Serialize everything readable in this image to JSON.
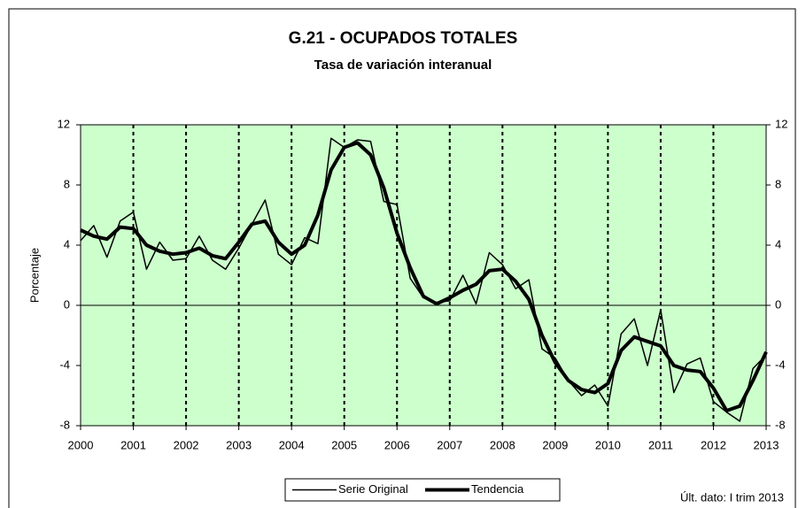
{
  "chart_data": {
    "type": "line",
    "title": "G.21 - OCUPADOS TOTALES",
    "subtitle": "Tasa de variación interanual",
    "ylabel": "Porcentaje",
    "note": "Últ. dato: I trim 2013",
    "background": "#ccffcc",
    "x": [
      2000,
      2000.25,
      2000.5,
      2000.75,
      2001,
      2001.25,
      2001.5,
      2001.75,
      2002,
      2002.25,
      2002.5,
      2002.75,
      2003,
      2003.25,
      2003.5,
      2003.75,
      2004,
      2004.25,
      2004.5,
      2004.75,
      2005,
      2005.25,
      2005.5,
      2005.75,
      2006,
      2006.25,
      2006.5,
      2006.75,
      2007,
      2007.25,
      2007.5,
      2007.75,
      2008,
      2008.25,
      2008.5,
      2008.75,
      2009,
      2009.25,
      2009.5,
      2009.75,
      2010,
      2010.25,
      2010.5,
      2010.75,
      2011,
      2011.25,
      2011.5,
      2011.75,
      2012,
      2012.25,
      2012.5,
      2012.75,
      2013
    ],
    "series": [
      {
        "name": "Serie Original",
        "color": "#000000",
        "width": 1.5,
        "values": [
          4.3,
          5.3,
          3.2,
          5.6,
          6.2,
          2.4,
          4.2,
          3.0,
          3.1,
          4.6,
          3.0,
          2.4,
          3.8,
          5.4,
          7.0,
          3.4,
          2.7,
          4.5,
          4.1,
          11.1,
          10.5,
          11.0,
          10.9,
          6.9,
          6.7,
          1.8,
          0.5,
          0.2,
          0.3,
          2.0,
          0.1,
          3.5,
          2.7,
          1.1,
          1.7,
          -2.9,
          -3.5,
          -5.0,
          -6.0,
          -5.3,
          -6.7,
          -1.9,
          -0.9,
          -4.0,
          -0.3,
          -5.8,
          -3.9,
          -3.5,
          -6.4,
          -7.1,
          -7.7,
          -4.2,
          -3.3
        ]
      },
      {
        "name": "Tendencia",
        "color": "#000000",
        "width": 4,
        "values": [
          5.0,
          4.6,
          4.4,
          5.2,
          5.1,
          4.0,
          3.6,
          3.4,
          3.5,
          3.8,
          3.3,
          3.1,
          4.2,
          5.4,
          5.6,
          4.2,
          3.4,
          4.0,
          6.0,
          9.0,
          10.5,
          10.8,
          10.0,
          7.8,
          4.8,
          2.5,
          0.6,
          0.1,
          0.5,
          1.0,
          1.4,
          2.3,
          2.4,
          1.6,
          0.4,
          -2.0,
          -3.8,
          -5.0,
          -5.6,
          -5.8,
          -5.2,
          -3.0,
          -2.1,
          -2.4,
          -2.7,
          -4.0,
          -4.3,
          -4.4,
          -5.5,
          -7.0,
          -6.7,
          -5.0,
          -3.1
        ]
      }
    ],
    "xlim": [
      2000,
      2013
    ],
    "xticks": [
      2000,
      2001,
      2002,
      2003,
      2004,
      2005,
      2006,
      2007,
      2008,
      2009,
      2010,
      2011,
      2012,
      2013
    ],
    "ylim": [
      -8,
      12
    ],
    "yticks": [
      -8,
      -4,
      0,
      4,
      8,
      12
    ],
    "y2lim": [
      -8,
      12
    ],
    "y2ticks": [
      -8,
      -4,
      0,
      4,
      8,
      12
    ],
    "grid": true,
    "legend": "bottom"
  }
}
